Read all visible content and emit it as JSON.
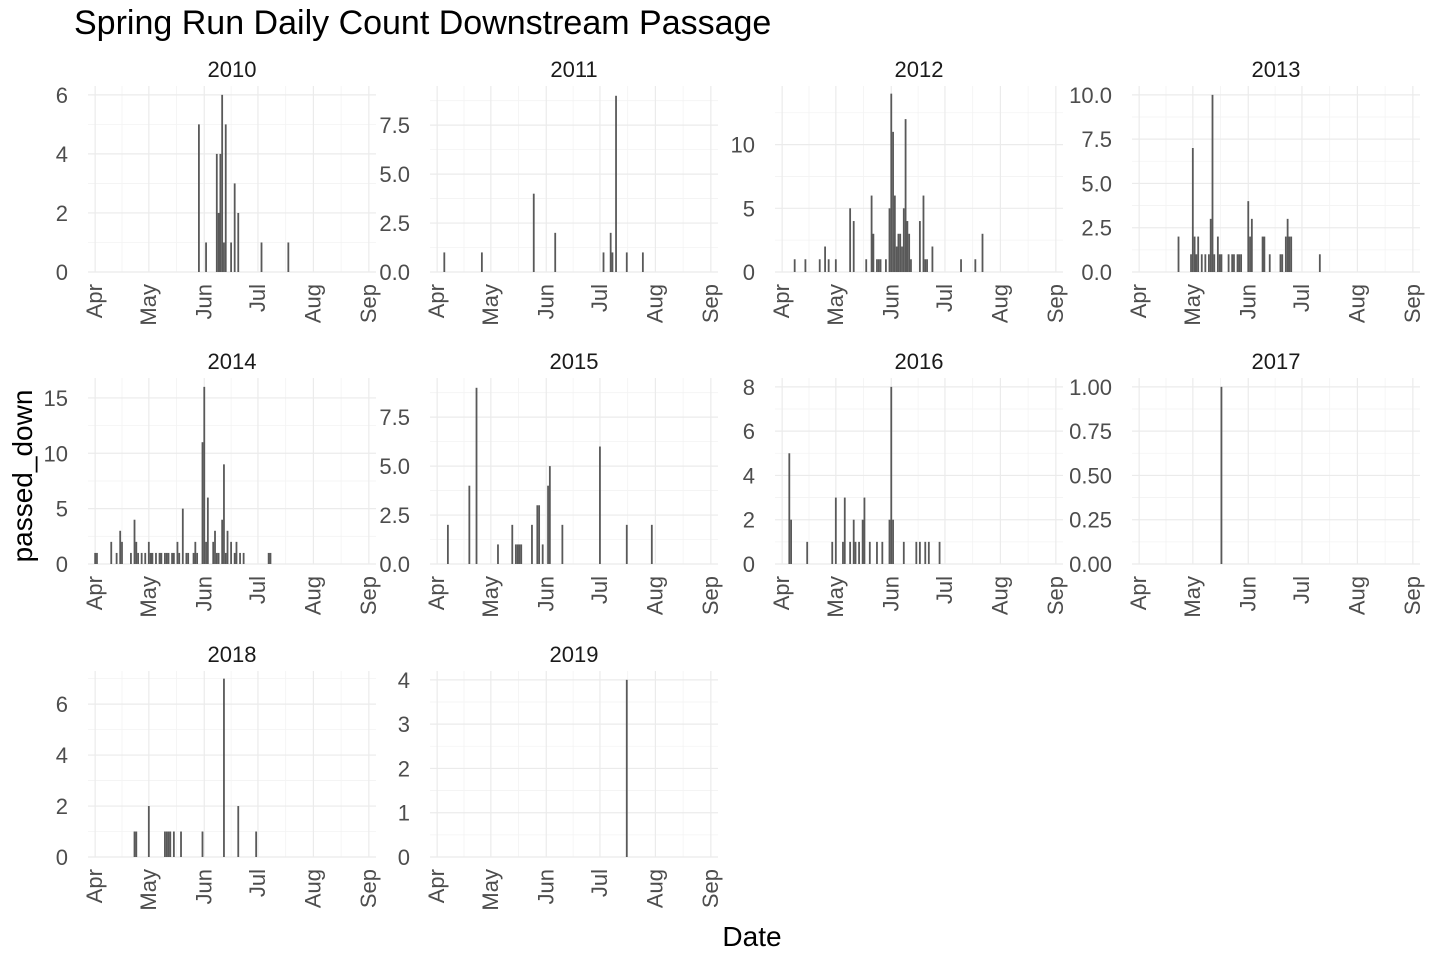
{
  "title": "Spring Run Daily Count Downstream Passage",
  "xlabel": "Date",
  "ylabel": "passed_down",
  "chart_data": {
    "type": "bar",
    "title": "Spring Run Daily Count Downstream Passage",
    "xlabel": "Date",
    "ylabel": "passed_down",
    "x_ticks": [
      "Apr",
      "May",
      "Jun",
      "Jul",
      "Aug",
      "Sep"
    ],
    "x_range": [
      "03-28",
      "09-05"
    ],
    "grid": true,
    "facets": [
      {
        "name": "2010",
        "ylim": [
          0,
          6.3
        ],
        "yticks": [
          0,
          2,
          4,
          6
        ],
        "ytick_labels": [
          "0",
          "2",
          "4",
          "6"
        ],
        "bars": [
          [
            "05-29",
            5
          ],
          [
            "06-02",
            1
          ],
          [
            "06-08",
            4
          ],
          [
            "06-09",
            2
          ],
          [
            "06-10",
            4
          ],
          [
            "06-11",
            6
          ],
          [
            "06-12",
            1
          ],
          [
            "06-13",
            5
          ],
          [
            "06-16",
            1
          ],
          [
            "06-18",
            3
          ],
          [
            "06-20",
            2
          ],
          [
            "07-03",
            1
          ],
          [
            "07-18",
            1
          ]
        ]
      },
      {
        "name": "2011",
        "ylim": [
          0,
          9.5
        ],
        "yticks": [
          0,
          2.5,
          5,
          7.5
        ],
        "ytick_labels": [
          "0.0",
          "2.5",
          "5.0",
          "7.5"
        ],
        "bars": [
          [
            "04-05",
            1
          ],
          [
            "04-26",
            1
          ],
          [
            "05-25",
            4
          ],
          [
            "06-06",
            2
          ],
          [
            "07-03",
            1
          ],
          [
            "07-07",
            2
          ],
          [
            "07-08",
            1
          ],
          [
            "07-10",
            9
          ],
          [
            "07-16",
            1
          ],
          [
            "07-25",
            1
          ]
        ]
      },
      {
        "name": "2012",
        "ylim": [
          0,
          14.6
        ],
        "yticks": [
          0,
          5,
          10
        ],
        "ytick_labels": [
          "0",
          "5",
          "10"
        ],
        "bars": [
          [
            "04-08",
            1
          ],
          [
            "04-14",
            1
          ],
          [
            "04-22",
            1
          ],
          [
            "04-25",
            2
          ],
          [
            "04-27",
            1
          ],
          [
            "05-01",
            1
          ],
          [
            "05-09",
            5
          ],
          [
            "05-11",
            4
          ],
          [
            "05-18",
            1
          ],
          [
            "05-21",
            6
          ],
          [
            "05-22",
            3
          ],
          [
            "05-24",
            1
          ],
          [
            "05-25",
            1
          ],
          [
            "05-26",
            1
          ],
          [
            "05-29",
            1
          ],
          [
            "05-31",
            5
          ],
          [
            "06-01",
            14
          ],
          [
            "06-02",
            11
          ],
          [
            "06-03",
            6
          ],
          [
            "06-04",
            2
          ],
          [
            "06-05",
            3
          ],
          [
            "06-06",
            3
          ],
          [
            "06-07",
            2
          ],
          [
            "06-08",
            5
          ],
          [
            "06-09",
            12
          ],
          [
            "06-10",
            4
          ],
          [
            "06-11",
            3
          ],
          [
            "06-12",
            1
          ],
          [
            "06-17",
            4
          ],
          [
            "06-19",
            6
          ],
          [
            "06-20",
            1
          ],
          [
            "06-21",
            1
          ],
          [
            "06-24",
            2
          ],
          [
            "07-10",
            1
          ],
          [
            "07-18",
            1
          ],
          [
            "07-22",
            3
          ]
        ]
      },
      {
        "name": "2013",
        "ylim": [
          0,
          10.5
        ],
        "yticks": [
          0,
          2.5,
          5,
          7.5,
          10
        ],
        "ytick_labels": [
          "0.0",
          "2.5",
          "5.0",
          "7.5",
          "10.0"
        ],
        "bars": [
          [
            "04-23",
            2
          ],
          [
            "04-30",
            1
          ],
          [
            "05-01",
            7
          ],
          [
            "05-02",
            2
          ],
          [
            "05-03",
            1
          ],
          [
            "05-04",
            2
          ],
          [
            "05-06",
            1
          ],
          [
            "05-08",
            1
          ],
          [
            "05-10",
            1
          ],
          [
            "05-11",
            3
          ],
          [
            "05-12",
            10
          ],
          [
            "05-13",
            1
          ],
          [
            "05-15",
            2
          ],
          [
            "05-16",
            1
          ],
          [
            "05-17",
            1
          ],
          [
            "05-21",
            1
          ],
          [
            "05-23",
            1
          ],
          [
            "05-24",
            1
          ],
          [
            "05-26",
            1
          ],
          [
            "05-27",
            1
          ],
          [
            "05-28",
            1
          ],
          [
            "06-01",
            4
          ],
          [
            "06-02",
            2
          ],
          [
            "06-03",
            3
          ],
          [
            "06-09",
            2
          ],
          [
            "06-10",
            2
          ],
          [
            "06-13",
            1
          ],
          [
            "06-19",
            1
          ],
          [
            "06-20",
            1
          ],
          [
            "06-22",
            2
          ],
          [
            "06-23",
            3
          ],
          [
            "06-24",
            2
          ],
          [
            "06-25",
            2
          ],
          [
            "07-11",
            1
          ]
        ]
      },
      {
        "name": "2014",
        "ylim": [
          0,
          16.8
        ],
        "yticks": [
          0,
          5,
          10,
          15
        ],
        "ytick_labels": [
          "0",
          "5",
          "10",
          "15"
        ],
        "bars": [
          [
            "04-01",
            1
          ],
          [
            "04-02",
            1
          ],
          [
            "04-10",
            2
          ],
          [
            "04-13",
            1
          ],
          [
            "04-15",
            3
          ],
          [
            "04-16",
            2
          ],
          [
            "04-21",
            1
          ],
          [
            "04-23",
            4
          ],
          [
            "04-24",
            2
          ],
          [
            "04-25",
            1
          ],
          [
            "04-27",
            1
          ],
          [
            "04-29",
            1
          ],
          [
            "05-01",
            2
          ],
          [
            "05-02",
            1
          ],
          [
            "05-03",
            1
          ],
          [
            "05-05",
            1
          ],
          [
            "05-07",
            1
          ],
          [
            "05-08",
            1
          ],
          [
            "05-10",
            1
          ],
          [
            "05-11",
            1
          ],
          [
            "05-12",
            1
          ],
          [
            "05-14",
            1
          ],
          [
            "05-15",
            1
          ],
          [
            "05-17",
            2
          ],
          [
            "05-18",
            1
          ],
          [
            "05-20",
            5
          ],
          [
            "05-22",
            1
          ],
          [
            "05-23",
            1
          ],
          [
            "05-26",
            1
          ],
          [
            "05-27",
            2
          ],
          [
            "05-28",
            1
          ],
          [
            "05-31",
            11
          ],
          [
            "06-01",
            16
          ],
          [
            "06-02",
            2
          ],
          [
            "06-03",
            6
          ],
          [
            "06-06",
            2
          ],
          [
            "06-07",
            3
          ],
          [
            "06-08",
            1
          ],
          [
            "06-09",
            1
          ],
          [
            "06-11",
            4
          ],
          [
            "06-12",
            9
          ],
          [
            "06-13",
            1
          ],
          [
            "06-14",
            3
          ],
          [
            "06-16",
            2
          ],
          [
            "06-18",
            1
          ],
          [
            "06-19",
            2
          ],
          [
            "06-21",
            1
          ],
          [
            "06-23",
            1
          ],
          [
            "07-07",
            1
          ],
          [
            "07-08",
            1
          ]
        ]
      },
      {
        "name": "2015",
        "ylim": [
          0,
          9.5
        ],
        "yticks": [
          0,
          2.5,
          5,
          7.5
        ],
        "ytick_labels": [
          "0.0",
          "2.5",
          "5.0",
          "7.5"
        ],
        "bars": [
          [
            "04-07",
            2
          ],
          [
            "04-19",
            4
          ],
          [
            "04-23",
            9
          ],
          [
            "05-05",
            1
          ],
          [
            "05-13",
            2
          ],
          [
            "05-15",
            1
          ],
          [
            "05-16",
            1
          ],
          [
            "05-17",
            1
          ],
          [
            "05-18",
            1
          ],
          [
            "05-24",
            2
          ],
          [
            "05-27",
            3
          ],
          [
            "05-28",
            3
          ],
          [
            "05-30",
            1
          ],
          [
            "06-02",
            4
          ],
          [
            "06-03",
            5
          ],
          [
            "06-10",
            2
          ],
          [
            "07-01",
            6
          ],
          [
            "07-16",
            2
          ],
          [
            "07-30",
            2
          ]
        ]
      },
      {
        "name": "2016",
        "ylim": [
          0,
          8.4
        ],
        "yticks": [
          0,
          2,
          4,
          6,
          8
        ],
        "ytick_labels": [
          "0",
          "2",
          "4",
          "6",
          "8"
        ],
        "bars": [
          [
            "04-05",
            5
          ],
          [
            "04-06",
            2
          ],
          [
            "04-15",
            1
          ],
          [
            "04-29",
            1
          ],
          [
            "05-01",
            3
          ],
          [
            "05-05",
            1
          ],
          [
            "05-06",
            3
          ],
          [
            "05-09",
            1
          ],
          [
            "05-11",
            2
          ],
          [
            "05-12",
            1
          ],
          [
            "05-14",
            1
          ],
          [
            "05-16",
            2
          ],
          [
            "05-17",
            3
          ],
          [
            "05-20",
            1
          ],
          [
            "05-24",
            1
          ],
          [
            "05-27",
            1
          ],
          [
            "05-31",
            2
          ],
          [
            "06-01",
            8
          ],
          [
            "06-02",
            2
          ],
          [
            "06-08",
            1
          ],
          [
            "06-15",
            1
          ],
          [
            "06-17",
            1
          ],
          [
            "06-20",
            1
          ],
          [
            "06-22",
            1
          ],
          [
            "06-28",
            1
          ]
        ]
      },
      {
        "name": "2017",
        "ylim": [
          0,
          1.05
        ],
        "yticks": [
          0,
          0.25,
          0.5,
          0.75,
          1.0
        ],
        "ytick_labels": [
          "0.00",
          "0.25",
          "0.50",
          "0.75",
          "1.00"
        ],
        "bars": [
          [
            "05-17",
            1
          ]
        ]
      },
      {
        "name": "2018",
        "ylim": [
          0,
          7.3
        ],
        "yticks": [
          0,
          2,
          4,
          6
        ],
        "ytick_labels": [
          "0",
          "2",
          "4",
          "6"
        ],
        "bars": [
          [
            "04-23",
            1
          ],
          [
            "04-24",
            1
          ],
          [
            "05-01",
            2
          ],
          [
            "05-10",
            1
          ],
          [
            "05-11",
            1
          ],
          [
            "05-12",
            1
          ],
          [
            "05-13",
            1
          ],
          [
            "05-15",
            1
          ],
          [
            "05-19",
            1
          ],
          [
            "05-31",
            1
          ],
          [
            "06-12",
            7
          ],
          [
            "06-20",
            2
          ],
          [
            "06-30",
            1
          ]
        ]
      },
      {
        "name": "2019",
        "ylim": [
          0,
          4.2
        ],
        "yticks": [
          0,
          1,
          2,
          3,
          4
        ],
        "ytick_labels": [
          "0",
          "1",
          "2",
          "3",
          "4"
        ],
        "bars": [
          [
            "07-16",
            4
          ]
        ]
      }
    ]
  }
}
